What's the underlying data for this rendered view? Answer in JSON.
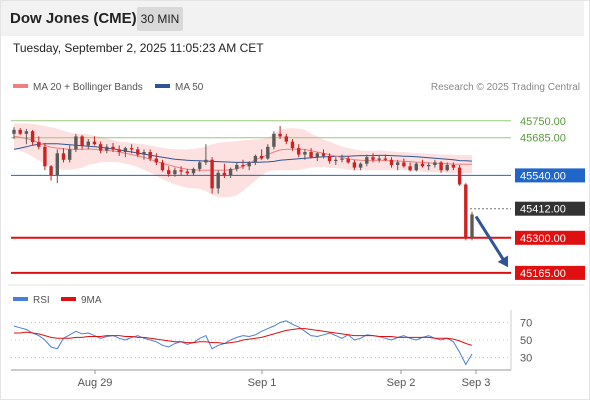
{
  "header": {
    "title": "Dow Jones (CME)",
    "interval": "30 MIN"
  },
  "datetime": "Tuesday, September 2, 2025 11:05:23 AM CET",
  "legend": {
    "items": [
      {
        "label": "MA 20 + Bollinger Bands",
        "color": "#f08080"
      },
      {
        "label": "MA 50",
        "color": "#2f5597"
      }
    ],
    "credit": "Research © 2025 Trading Central"
  },
  "colors": {
    "up": "#5a5a5a",
    "down": "#cc2222",
    "resistance": "#9bc97a",
    "pivot": "#1f66c8",
    "support": "#e01010",
    "bollinger": "#fde0e0",
    "ma20": "#f08080",
    "ma50": "#2f5597",
    "last": "#333333",
    "arrow": "#2f5597"
  },
  "chart_data": [
    {
      "type": "line",
      "description": "Candlestick price chart, 30-minute",
      "ylim": [
        45130,
        45830
      ],
      "x_ticks": [
        "Aug 29",
        "Sep 1",
        "Sep 2",
        "Sep 3"
      ],
      "candles": [
        [
          45700,
          45725,
          45680,
          45715
        ],
        [
          45715,
          45722,
          45695,
          45700
        ],
        [
          45700,
          45718,
          45660,
          45710
        ],
        [
          45710,
          45715,
          45655,
          45668
        ],
        [
          45668,
          45690,
          45640,
          45650
        ],
        [
          45650,
          45665,
          45560,
          45575
        ],
        [
          45575,
          45580,
          45520,
          45540
        ],
        [
          45540,
          45640,
          45510,
          45625
        ],
        [
          45625,
          45645,
          45590,
          45600
        ],
        [
          45600,
          45655,
          45590,
          45640
        ],
        [
          45640,
          45700,
          45630,
          45690
        ],
        [
          45690,
          45695,
          45640,
          45655
        ],
        [
          45655,
          45680,
          45640,
          45670
        ],
        [
          45670,
          45690,
          45655,
          45660
        ],
        [
          45660,
          45670,
          45625,
          45635
        ],
        [
          45635,
          45660,
          45625,
          45650
        ],
        [
          45650,
          45665,
          45630,
          45640
        ],
        [
          45640,
          45655,
          45615,
          45630
        ],
        [
          45630,
          45650,
          45610,
          45645
        ],
        [
          45645,
          45660,
          45625,
          45640
        ],
        [
          45640,
          45650,
          45610,
          45620
        ],
        [
          45620,
          45640,
          45600,
          45630
        ],
        [
          45630,
          45640,
          45595,
          45605
        ],
        [
          45605,
          45625,
          45580,
          45590
        ],
        [
          45590,
          45600,
          45555,
          45560
        ],
        [
          45560,
          45575,
          45535,
          45545
        ],
        [
          45545,
          45570,
          45535,
          45560
        ],
        [
          45560,
          45575,
          45540,
          45555
        ],
        [
          45555,
          45565,
          45540,
          45548
        ],
        [
          45548,
          45570,
          45540,
          45565
        ],
        [
          45565,
          45595,
          45555,
          45590
        ],
        [
          45590,
          45660,
          45580,
          45600
        ],
        [
          45600,
          45610,
          45470,
          45490
        ],
        [
          45490,
          45560,
          45470,
          45550
        ],
        [
          45550,
          45585,
          45530,
          45540
        ],
        [
          45540,
          45570,
          45530,
          45565
        ],
        [
          45565,
          45590,
          45555,
          45580
        ],
        [
          45580,
          45600,
          45565,
          45575
        ],
        [
          45575,
          45595,
          45560,
          45590
        ],
        [
          45590,
          45620,
          45580,
          45615
        ],
        [
          45615,
          45640,
          45600,
          45605
        ],
        [
          45605,
          45660,
          45600,
          45650
        ],
        [
          45650,
          45710,
          45640,
          45700
        ],
        [
          45700,
          45730,
          45680,
          45690
        ],
        [
          45690,
          45700,
          45660,
          45670
        ],
        [
          45670,
          45680,
          45635,
          45645
        ],
        [
          45645,
          45660,
          45610,
          45620
        ],
        [
          45620,
          45640,
          45600,
          45630
        ],
        [
          45630,
          45645,
          45605,
          45610
        ],
        [
          45610,
          45630,
          45595,
          45625
        ],
        [
          45625,
          45640,
          45605,
          45615
        ],
        [
          45615,
          45625,
          45585,
          45595
        ],
        [
          45595,
          45610,
          45580,
          45600
        ],
        [
          45600,
          45620,
          45590,
          45605
        ],
        [
          45605,
          45615,
          45585,
          45590
        ],
        [
          45590,
          45600,
          45560,
          45570
        ],
        [
          45570,
          45590,
          45560,
          45585
        ],
        [
          45585,
          45620,
          45575,
          45610
        ],
        [
          45610,
          45625,
          45590,
          45600
        ],
        [
          45600,
          45615,
          45590,
          45605
        ],
        [
          45605,
          45620,
          45595,
          45600
        ],
        [
          45600,
          45610,
          45570,
          45580
        ],
        [
          45580,
          45600,
          45560,
          45590
        ],
        [
          45590,
          45605,
          45570,
          45575
        ],
        [
          45575,
          45590,
          45555,
          45560
        ],
        [
          45560,
          45590,
          45555,
          45585
        ],
        [
          45585,
          45600,
          45570,
          45575
        ],
        [
          45575,
          45590,
          45560,
          45580
        ],
        [
          45580,
          45600,
          45570,
          45590
        ],
        [
          45590,
          45595,
          45550,
          45560
        ],
        [
          45560,
          45590,
          45555,
          45580
        ],
        [
          45580,
          45590,
          45560,
          45570
        ],
        [
          45570,
          45580,
          45500,
          45505
        ],
        [
          45505,
          45510,
          45290,
          45300
        ],
        [
          45300,
          45400,
          45290,
          45390
        ]
      ],
      "bollinger_upper": [
        45740,
        45740,
        45740,
        45738,
        45735,
        45730,
        45725,
        45720,
        45712,
        45705,
        45700,
        45700,
        45698,
        45692,
        45688,
        45682,
        45676,
        45670,
        45668,
        45665,
        45662,
        45660,
        45655,
        45650,
        45646,
        45642,
        45640,
        45640,
        45640,
        45642,
        45645,
        45650,
        45660,
        45665,
        45668,
        45670,
        45672,
        45675,
        45676,
        45678,
        45680,
        45685,
        45700,
        45715,
        45720,
        45722,
        45720,
        45715,
        45700,
        45690,
        45678,
        45670,
        45660,
        45652,
        45645,
        45640,
        45636,
        45635,
        45635,
        45636,
        45635,
        45632,
        45630,
        45630,
        45628,
        45626,
        45625,
        45624,
        45622,
        45620,
        45620,
        45619,
        45618,
        45618,
        45618
      ],
      "bollinger_lower": [
        45640,
        45635,
        45625,
        45612,
        45598,
        45582,
        45570,
        45565,
        45562,
        45562,
        45565,
        45570,
        45580,
        45585,
        45590,
        45592,
        45592,
        45590,
        45585,
        45580,
        45572,
        45562,
        45550,
        45538,
        45525,
        45515,
        45505,
        45498,
        45492,
        45490,
        45488,
        45480,
        45465,
        45458,
        45456,
        45458,
        45464,
        45480,
        45500,
        45520,
        45540,
        45555,
        45560,
        45560,
        45560,
        45560,
        45562,
        45565,
        45570,
        45572,
        45572,
        45570,
        45568,
        45566,
        45562,
        45560,
        45560,
        45560,
        45560,
        45560,
        45560,
        45560,
        45560,
        45560,
        45558,
        45556,
        45554,
        45552,
        45552,
        45552,
        45550,
        45548,
        45548,
        45548,
        45548
      ],
      "ma20": [
        45690,
        45687,
        45682,
        45675,
        45666,
        45656,
        45648,
        45645,
        45642,
        45640,
        45640,
        45640,
        45642,
        45640,
        45639,
        45637,
        45634,
        45630,
        45625,
        45620,
        45615,
        45610,
        45602,
        45594,
        45586,
        45580,
        45574,
        45568,
        45564,
        45562,
        45560,
        45560,
        45560,
        45560,
        45560,
        45562,
        45565,
        45575,
        45588,
        45600,
        45610,
        45620,
        45630,
        45638,
        45640,
        45641,
        45641,
        45640,
        45635,
        45630,
        45625,
        45620,
        45614,
        45609,
        45604,
        45600,
        45598,
        45597,
        45597,
        45598,
        45597,
        45596,
        45595,
        45594,
        45593,
        45591,
        45590,
        45588,
        45587,
        45586,
        45585,
        45583,
        45583,
        45583,
        45583
      ],
      "ma50": [
        45640,
        45645,
        45650,
        45656,
        45660,
        45662,
        45662,
        45662,
        45660,
        45658,
        45656,
        45654,
        45652,
        45650,
        45648,
        45645,
        45642,
        45638,
        45634,
        45630,
        45626,
        45622,
        45618,
        45614,
        45610,
        45606,
        45602,
        45600,
        45598,
        45597,
        45596,
        45595,
        45594,
        45593,
        45592,
        45591,
        45590,
        45590,
        45590,
        45590,
        45591,
        45592,
        45594,
        45598,
        45600,
        45602,
        45604,
        45606,
        45608,
        45610,
        45612,
        45612,
        45613,
        45614,
        45614,
        45615,
        45616,
        45616,
        45616,
        45617,
        45617,
        45616,
        45615,
        45614,
        45613,
        45612,
        45610,
        45608,
        45606,
        45604,
        45602,
        45600,
        45597,
        45596,
        45595
      ],
      "levels": [
        {
          "label": "45750.00",
          "value": 45750,
          "kind": "resistance"
        },
        {
          "label": "45685.00",
          "value": 45685,
          "kind": "resistance"
        },
        {
          "label": "45540.00",
          "value": 45540,
          "kind": "pivot"
        },
        {
          "label": "45412.00",
          "value": 45412,
          "kind": "last"
        },
        {
          "label": "45300.00",
          "value": 45300,
          "kind": "support"
        },
        {
          "label": "45165.00",
          "value": 45165,
          "kind": "support"
        }
      ]
    },
    {
      "type": "line",
      "description": "RSI panel",
      "legend": [
        {
          "label": "RSI",
          "color": "#4a7fd6"
        },
        {
          "label": "9MA",
          "color": "#e01010"
        }
      ],
      "ylim": [
        18,
        82
      ],
      "y_ticks": [
        "70",
        "50",
        "30"
      ],
      "series": [
        {
          "name": "RSI",
          "values": [
            66,
            64,
            62,
            58,
            55,
            50,
            42,
            40,
            52,
            56,
            60,
            57,
            58,
            55,
            52,
            54,
            55,
            52,
            50,
            53,
            55,
            52,
            50,
            48,
            44,
            42,
            46,
            48,
            45,
            47,
            52,
            55,
            40,
            44,
            46,
            50,
            53,
            55,
            54,
            56,
            60,
            63,
            66,
            70,
            72,
            68,
            65,
            60,
            55,
            54,
            56,
            58,
            55,
            52,
            56,
            50,
            52,
            56,
            55,
            54,
            52,
            50,
            53,
            55,
            52,
            50,
            53,
            55,
            52,
            50,
            52,
            48,
            36,
            22,
            34
          ]
        },
        {
          "name": "9MA",
          "values": [
            58,
            58,
            59,
            58,
            57,
            55,
            53,
            52,
            52,
            52,
            53,
            53,
            54,
            54,
            54,
            55,
            55,
            55,
            54,
            54,
            53,
            53,
            52,
            51,
            50,
            49,
            48,
            48,
            47,
            47,
            48,
            48,
            47,
            47,
            46,
            47,
            48,
            50,
            51,
            52,
            53,
            55,
            57,
            59,
            61,
            62,
            63,
            63,
            62,
            61,
            60,
            59,
            58,
            57,
            56,
            55,
            55,
            55,
            55,
            54,
            54,
            54,
            53,
            53,
            53,
            53,
            53,
            53,
            52,
            52,
            52,
            51,
            49,
            46,
            44
          ]
        }
      ]
    }
  ]
}
